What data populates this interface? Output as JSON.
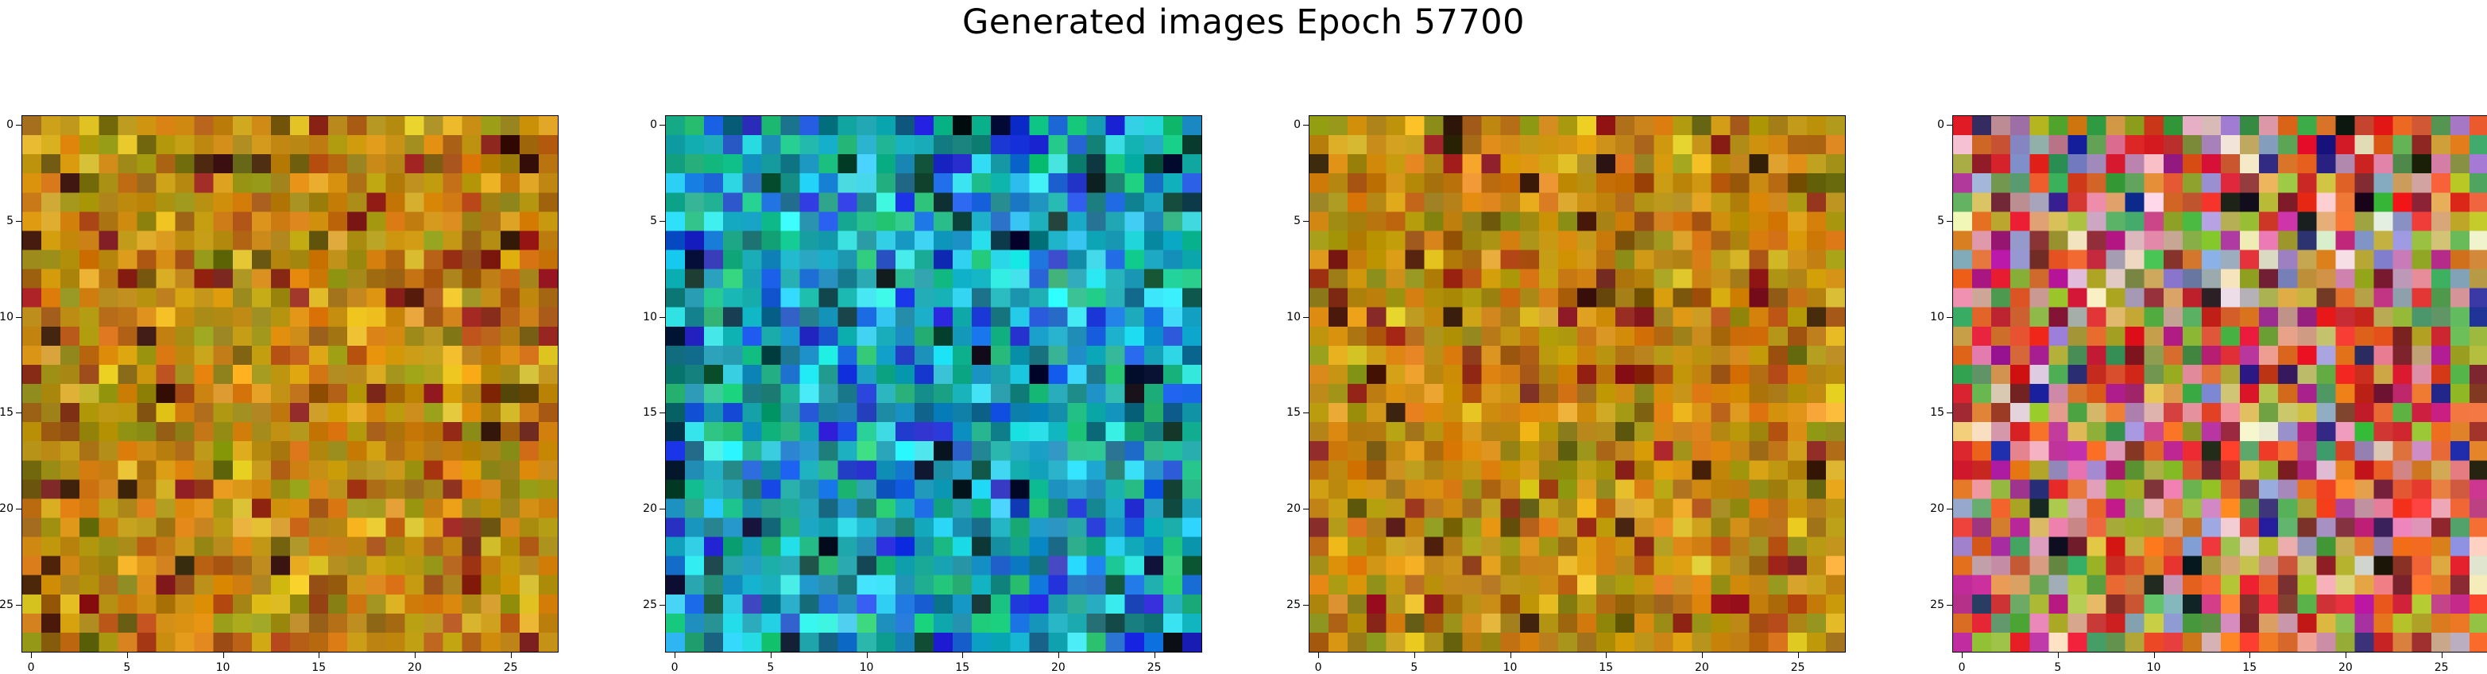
{
  "figure": {
    "title": "Generated images Epoch 57700"
  },
  "chart_data": [
    {
      "type": "heatmap",
      "rows": 28,
      "cols": 28,
      "palette": "warm-ochre",
      "base_color": "#b8820f",
      "xticks": [
        0,
        5,
        10,
        15,
        20,
        25
      ],
      "yticks": [
        0,
        5,
        10,
        15,
        20,
        25
      ],
      "xlim": [
        -0.5,
        27.5
      ],
      "ylim": [
        27.5,
        -0.5
      ]
    },
    {
      "type": "heatmap",
      "rows": 28,
      "cols": 28,
      "palette": "cyan-teal",
      "base_color": "#1aa3b8",
      "xticks": [
        0,
        5,
        10,
        15,
        20,
        25
      ],
      "yticks": [
        0,
        5,
        10,
        15,
        20,
        25
      ],
      "xlim": [
        -0.5,
        27.5
      ],
      "ylim": [
        27.5,
        -0.5
      ]
    },
    {
      "type": "heatmap",
      "rows": 28,
      "cols": 28,
      "palette": "warm-ochre",
      "base_color": "#b8820f",
      "xticks": [
        0,
        5,
        10,
        15,
        20,
        25
      ],
      "yticks": [
        0,
        5,
        10,
        15,
        20,
        25
      ],
      "xlim": [
        -0.5,
        27.5
      ],
      "ylim": [
        27.5,
        -0.5
      ]
    },
    {
      "type": "heatmap",
      "rows": 28,
      "cols": 28,
      "palette": "multicolor",
      "base_color": "#c8783c",
      "xticks": [
        0,
        5,
        10,
        15,
        20,
        25
      ],
      "yticks": [
        0,
        5,
        10,
        15,
        20,
        25
      ],
      "xlim": [
        -0.5,
        27.5
      ],
      "ylim": [
        27.5,
        -0.5
      ]
    }
  ]
}
